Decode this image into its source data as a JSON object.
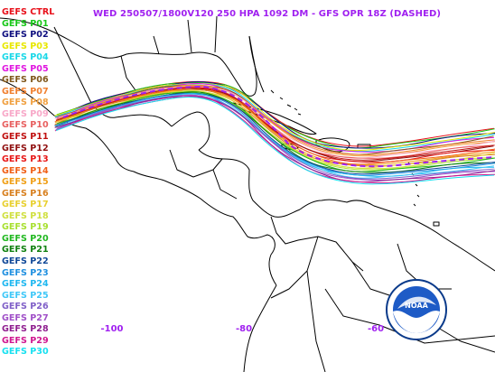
{
  "title": "WED 250507/1800V120  250 HPA 1092 DM - GFS OPR 18Z (DASHED)",
  "legend": [
    {
      "label": "GEFS CTRL",
      "color": "#e8101a"
    },
    {
      "label": "GEFS P01",
      "color": "#18c818"
    },
    {
      "label": "GEFS P02",
      "color": "#101080"
    },
    {
      "label": "GEFS P03",
      "color": "#e8e800"
    },
    {
      "label": "GEFS P04",
      "color": "#18d8e8"
    },
    {
      "label": "GEFS P05",
      "color": "#e018e0"
    },
    {
      "label": "GEFS P06",
      "color": "#80581c"
    },
    {
      "label": "GEFS P07",
      "color": "#f08030"
    },
    {
      "label": "GEFS P08",
      "color": "#f0a040"
    },
    {
      "label": "GEFS P09",
      "color": "#f8a8c8"
    },
    {
      "label": "GEFS P10",
      "color": "#e86060"
    },
    {
      "label": "GEFS P11",
      "color": "#c01010"
    },
    {
      "label": "GEFS P12",
      "color": "#901010"
    },
    {
      "label": "GEFS P13",
      "color": "#e81818"
    },
    {
      "label": "GEFS P14",
      "color": "#f06018"
    },
    {
      "label": "GEFS P15",
      "color": "#f0a018"
    },
    {
      "label": "GEFS P16",
      "color": "#d88020"
    },
    {
      "label": "GEFS P17",
      "color": "#e8d030"
    },
    {
      "label": "GEFS P18",
      "color": "#d0e040"
    },
    {
      "label": "GEFS P19",
      "color": "#a8e030"
    },
    {
      "label": "GEFS P20",
      "color": "#20b820"
    },
    {
      "label": "GEFS P21",
      "color": "#108010"
    },
    {
      "label": "GEFS P22",
      "color": "#104898"
    },
    {
      "label": "GEFS P23",
      "color": "#2090e0"
    },
    {
      "label": "GEFS P24",
      "color": "#20b8f0"
    },
    {
      "label": "GEFS P25",
      "color": "#40c8f8"
    },
    {
      "label": "GEFS P26",
      "color": "#8060c8"
    },
    {
      "label": "GEFS P27",
      "color": "#a050c8"
    },
    {
      "label": "GEFS P28",
      "color": "#902090"
    },
    {
      "label": "GEFS P29",
      "color": "#d01890"
    },
    {
      "label": "GEFS P30",
      "color": "#18e0f0"
    }
  ],
  "longitude_labels": [
    {
      "text": "-100",
      "lon": -100
    },
    {
      "text": "-80",
      "lon": -80
    },
    {
      "text": "-60",
      "lon": -60
    }
  ],
  "gfs_operational_color": "#a020f0",
  "border_color": "#000000",
  "logo": {
    "name": "noaa-logo",
    "text": "NOAA"
  }
}
